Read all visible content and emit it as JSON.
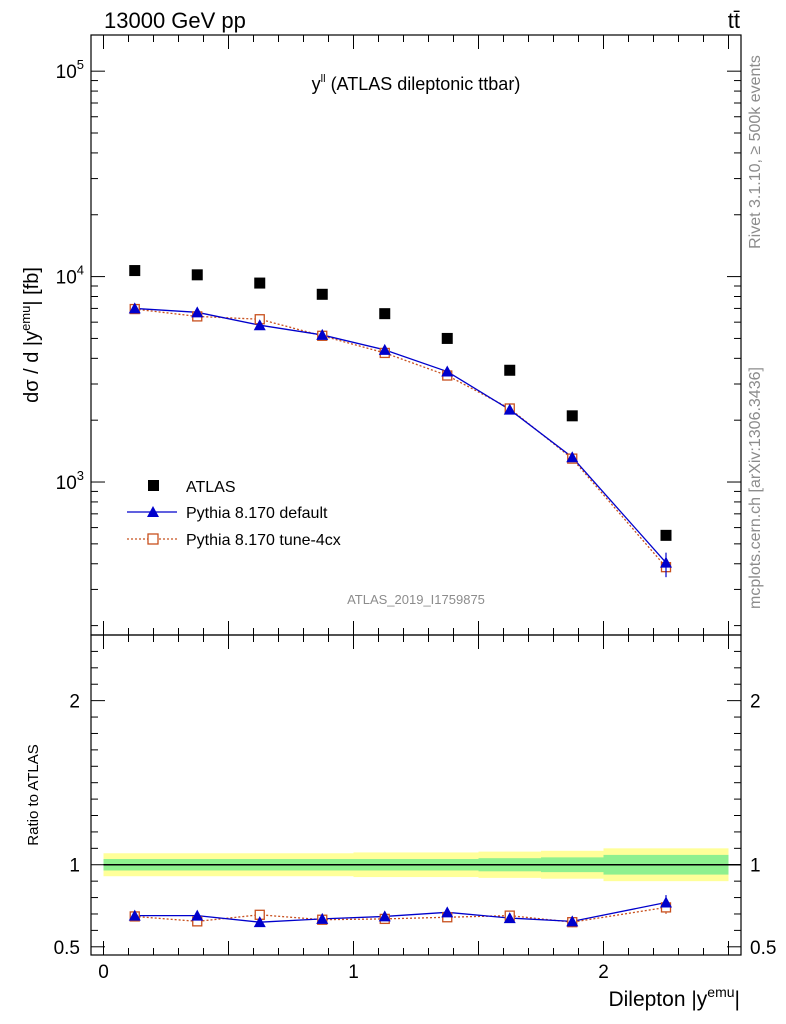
{
  "header": {
    "left": "13000 GeV pp",
    "right": "tt̄"
  },
  "side_labels": {
    "rivet": "Rivet 3.1.10, ≥ 500k events",
    "mcplots": "mcplots.cern.ch [arXiv:1306.3436]"
  },
  "chart_data": [
    {
      "type": "scatter",
      "panel": "main",
      "title": {
        "main": "y",
        "sup": "ll",
        "rest": " (ATLAS dileptonic ttbar)"
      },
      "ylabel": {
        "pre": "dσ / d |y",
        "sup": "emu",
        "post": "| [fb]"
      },
      "watermark": "ATLAS_2019_I1759875",
      "yscale": "log",
      "ylim": [
        180,
        150000
      ],
      "xlim": [
        -0.05,
        2.55
      ],
      "y_ticks": [
        {
          "value": 1000,
          "base": "10",
          "exp": "3"
        },
        {
          "value": 10000,
          "base": "10",
          "exp": "4"
        },
        {
          "value": 100000,
          "base": "10",
          "exp": "5"
        }
      ],
      "x_bins": [
        0.125,
        0.375,
        0.625,
        0.875,
        1.125,
        1.375,
        1.625,
        1.875,
        2.25
      ],
      "legend_position": "lower-left",
      "series": [
        {
          "name": "ATLAS",
          "marker": "square",
          "color": "#000000",
          "values": [
            10700,
            10200,
            9300,
            8200,
            6600,
            5000,
            3500,
            2100,
            550
          ]
        },
        {
          "name": "Pythia 8.170 default",
          "marker": "triangle",
          "color": "#0000cc",
          "line": "solid",
          "values": [
            7000,
            6700,
            5800,
            5200,
            4400,
            3450,
            2250,
            1320,
            405
          ]
        },
        {
          "name": "Pythia 8.170 tune-4cx",
          "marker": "open-square",
          "color": "#c8501e",
          "line": "dotted",
          "values": [
            6950,
            6400,
            6200,
            5150,
            4250,
            3300,
            2280,
            1300,
            385
          ]
        }
      ]
    },
    {
      "type": "line",
      "panel": "ratio",
      "ylabel": "Ratio to ATLAS",
      "xlabel": {
        "pre": "Dilepton |y",
        "sup": "emu",
        "post": "|"
      },
      "ylim": [
        0.45,
        2.4
      ],
      "xlim": [
        -0.05,
        2.55
      ],
      "y_ticks": [
        {
          "value": 0.5,
          "label": "0.5"
        },
        {
          "value": 1,
          "label": "1"
        },
        {
          "value": 2,
          "label": "2"
        }
      ],
      "x_ticks": [
        {
          "value": 0,
          "label": "0"
        },
        {
          "value": 1,
          "label": "1"
        },
        {
          "value": 2,
          "label": "2"
        }
      ],
      "bin_edges": [
        0,
        0.25,
        0.5,
        0.75,
        1.0,
        1.25,
        1.5,
        1.75,
        2.0,
        2.5
      ],
      "band_inner": [
        0.035,
        0.035,
        0.035,
        0.035,
        0.035,
        0.035,
        0.04,
        0.045,
        0.06
      ],
      "band_outer": [
        0.07,
        0.07,
        0.07,
        0.07,
        0.075,
        0.075,
        0.08,
        0.085,
        0.1
      ],
      "series": [
        {
          "name": "Pythia 8.170 default",
          "color": "#0000cc",
          "values": [
            0.69,
            0.69,
            0.65,
            0.67,
            0.685,
            0.71,
            0.675,
            0.655,
            0.77
          ]
        },
        {
          "name": "Pythia 8.170 tune-4cx",
          "color": "#c8501e",
          "values": [
            0.685,
            0.655,
            0.695,
            0.665,
            0.67,
            0.68,
            0.69,
            0.65,
            0.74
          ]
        }
      ]
    }
  ]
}
